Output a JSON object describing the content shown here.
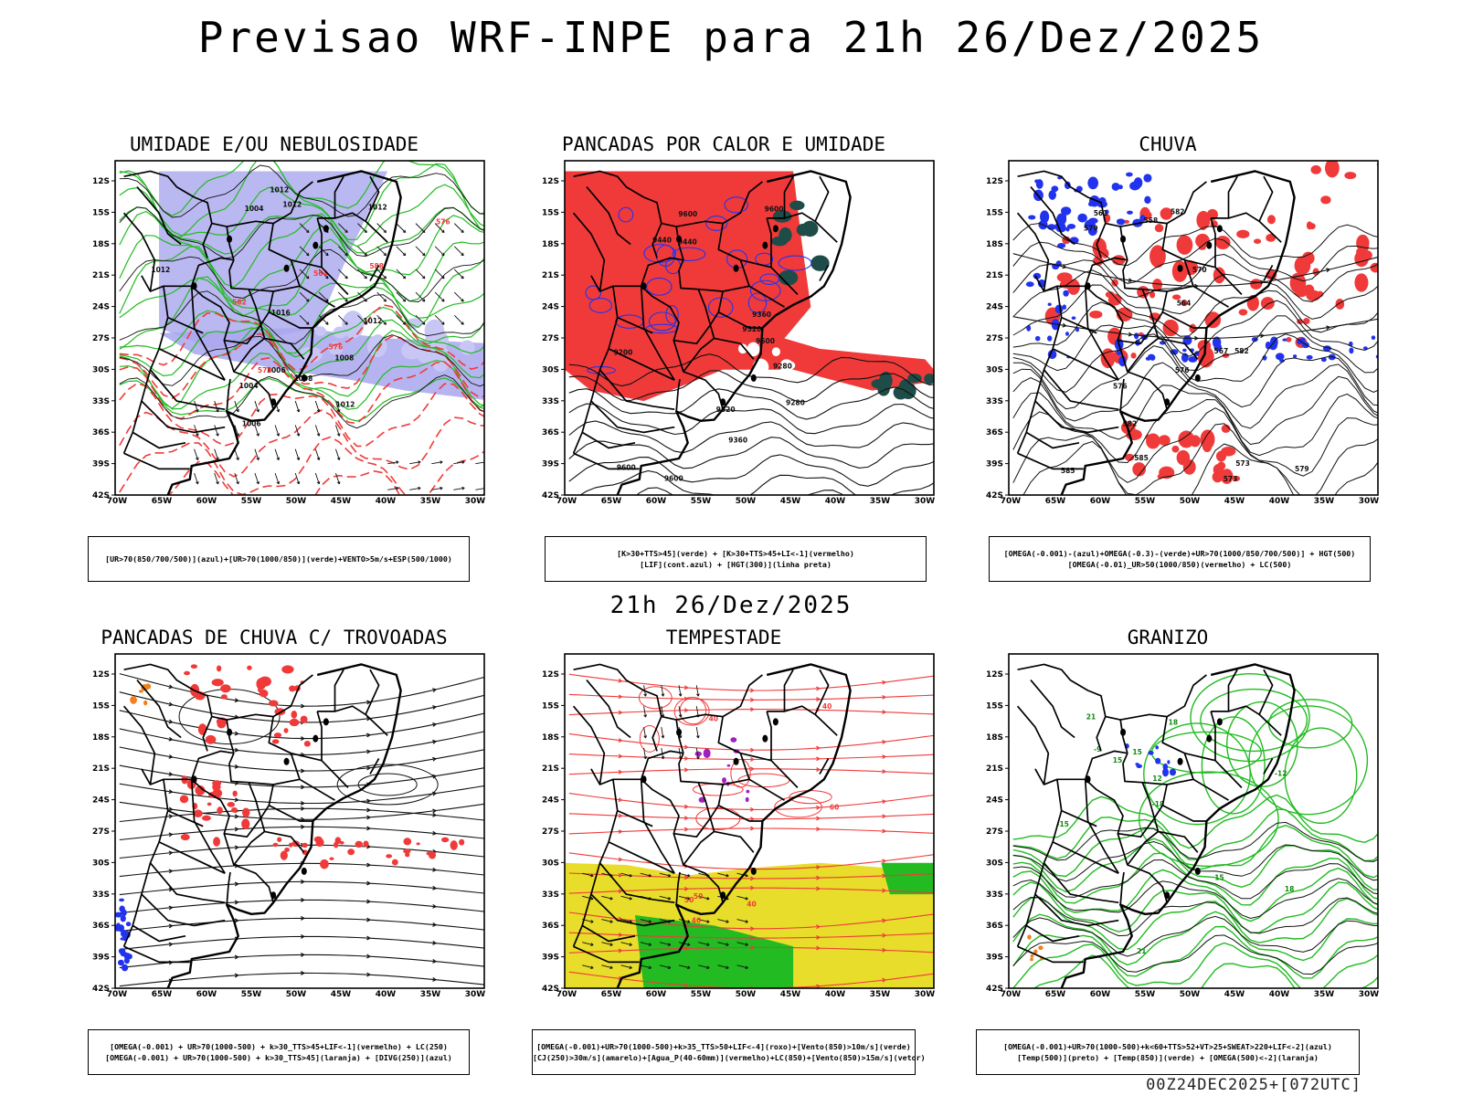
{
  "header": {
    "title": "Previsao WRF-INPE  para 21h 26/Dez/2025",
    "mid_date": "21h 26/Dez/2025",
    "footer_code": "00Z24DEC2025+[072UTC]"
  },
  "axes": {
    "lat_labels": [
      "12S",
      "15S",
      "18S",
      "21S",
      "24S",
      "27S",
      "30S",
      "33S",
      "36S",
      "39S",
      "42S"
    ],
    "lon_labels": [
      "70W",
      "65W",
      "60W",
      "55W",
      "50W",
      "45W",
      "40W",
      "35W",
      "30W"
    ]
  },
  "colors": {
    "blue_fill": "#a9a6ee",
    "green": "#22bb22",
    "red": "#f03a3a",
    "blue": "#2233ee",
    "yellow": "#e8dd2a",
    "teal": "#1e4c48",
    "orange": "#f08020"
  },
  "panels": [
    {
      "title": "UMIDADE E/OU NEBULOSIDADE",
      "legend": [
        "[UR>70(850/700/500)](azul)+[UR>70(1000/850)](verde)+VENTO>5m/s+ESP(500/1000)"
      ],
      "contour_labels": [
        "1006",
        "1012",
        "1012",
        "1012",
        "1008",
        "1004",
        "1016",
        "1012",
        "1012",
        "1012",
        "1008",
        "1006",
        "1004",
        "576",
        "576",
        "570",
        "564",
        "582",
        "588"
      ]
    },
    {
      "title": "PANCADAS POR CALOR E UMIDADE",
      "legend": [
        "[K>30+TTS>45](verde) + [K>30+TTS>45+LI<-1](vermelho)",
        "[LIF](cont.azul) + [HGT(300)](linha preta)"
      ],
      "contour_labels": [
        "9600",
        "9600",
        "9600",
        "9600",
        "9520",
        "9600",
        "9520",
        "9440",
        "9440",
        "9360",
        "9360",
        "9280",
        "9280",
        "9200"
      ]
    },
    {
      "title": "CHUVA",
      "legend": [
        "[OMEGA(-0.001)-(azul)+OMEGA(-0.3)-(verde)+UR>70(1000/850/700/500)] + HGT(500)",
        "[OMEGA(-0.01)_UR>50(1000/850)(vermelho) + LC(500)"
      ],
      "contour_labels": [
        "585",
        "585",
        "582",
        "582",
        "582",
        "579",
        "579",
        "576",
        "576",
        "573",
        "573",
        "570",
        "567",
        "564",
        "561",
        "558"
      ]
    },
    {
      "title": "PANCADAS DE CHUVA C/ TROVOADAS",
      "legend": [
        "[OMEGA(-0.001) + UR>70(1000-500) + k>30_TTS>45+LIF<-1](vermelho) + LC(250)",
        "[OMEGA(-0.001) + UR>70(1000-500) + k>30_TTS>45](laranja) + [DIVG(250)](azul)"
      ],
      "contour_labels": []
    },
    {
      "title": "TEMPESTADE",
      "legend": [
        "[OMEGA(-0.001)+UR>70(1000-500)+k>35_TTS>50+LIF<-4](roxo)+[Vento(850)>10m/s](verde)",
        "[CJ(250)>30m/s](amarelo)+[Agua_P(40-60mm)](vermelho)+LC(850)+[Vento(850)>15m/s](vetor)"
      ],
      "contour_labels": [
        "40",
        "40",
        "40",
        "40",
        "50",
        "50",
        "60"
      ]
    },
    {
      "title": "GRANIZO",
      "legend": [
        "[OMEGA(-0.001)+UR>70(1000-500)+k<60+TTS>52+VT>25+SWEAT>220+LIF<-2](azul)",
        "[Temp(500)](preto) + [Temp(850)](verde) + [OMEGA(500)<-2](laranja)"
      ],
      "contour_labels": [
        "21",
        "21",
        "18",
        "18",
        "15",
        "15",
        "15",
        "12",
        "-9",
        "-12",
        "-15",
        "-18"
      ]
    }
  ]
}
